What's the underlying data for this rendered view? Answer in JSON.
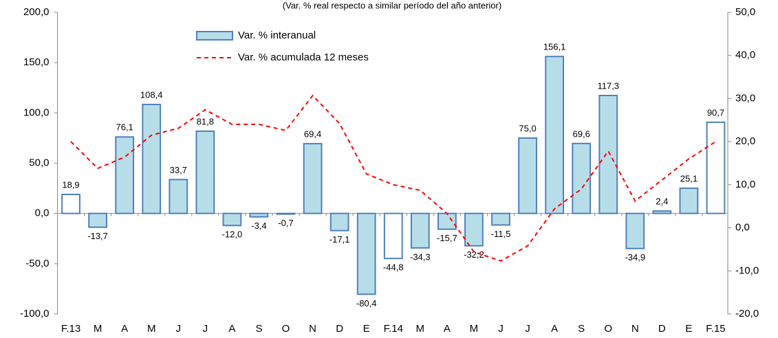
{
  "chart_data": {
    "type": "bar",
    "subtitle": "(Var. % real respecto a similar período del año anterior)",
    "categories": [
      "F.13",
      "M",
      "A",
      "M",
      "J",
      "J",
      "A",
      "S",
      "O",
      "N",
      "D",
      "E",
      "F.14",
      "M",
      "A",
      "M",
      "J",
      "J",
      "A",
      "S",
      "O",
      "N",
      "D",
      "E",
      "F.15"
    ],
    "series": [
      {
        "name": "Var. % interanual",
        "type": "bar",
        "color": "#b7dde8",
        "edge_color": "#4f81bd",
        "point_colors": [
          "#ffffff",
          "#b7dde8",
          "#b7dde8",
          "#b7dde8",
          "#b7dde8",
          "#b7dde8",
          "#b7dde8",
          "#b7dde8",
          "#b7dde8",
          "#b7dde8",
          "#b7dde8",
          "#b7dde8",
          "#ffffff",
          "#b7dde8",
          "#b7dde8",
          "#b7dde8",
          "#b7dde8",
          "#b7dde8",
          "#b7dde8",
          "#b7dde8",
          "#b7dde8",
          "#b7dde8",
          "#b7dde8",
          "#b7dde8",
          "#ffffff"
        ],
        "values": [
          18.9,
          -13.7,
          76.1,
          108.4,
          33.7,
          81.8,
          -12.0,
          -3.4,
          -0.7,
          69.4,
          -17.1,
          -80.4,
          -44.8,
          -34.3,
          -15.7,
          -32.2,
          -11.5,
          75.0,
          156.1,
          69.6,
          117.3,
          -34.9,
          2.4,
          25.1,
          90.7
        ],
        "value_labels": [
          "18,9",
          "-13,7",
          "76,1",
          "108,4",
          "33,7",
          "81,8",
          "-12,0",
          "-3,4",
          "-0,7",
          "69,4",
          "-17,1",
          "-80,4",
          "-44,8",
          "-34,3",
          "-15,7",
          "-32,2",
          "-11,5",
          "75,0",
          "156,1",
          "69,6",
          "117,3",
          "-34,9",
          "2,4",
          "25,1",
          "90,7"
        ]
      },
      {
        "name": "Var. % acumulada 12 meses",
        "type": "line",
        "axis": "y2",
        "color": "#ff0000",
        "dashed": true,
        "values": [
          20.0,
          13.8,
          16.4,
          21.5,
          23.1,
          27.4,
          24.0,
          24.0,
          22.6,
          30.7,
          24.2,
          12.5,
          10.0,
          8.7,
          3.3,
          -5.6,
          -7.7,
          -4.2,
          4.4,
          9.0,
          17.8,
          6.2,
          11.1,
          16.0,
          20.0
        ]
      }
    ],
    "ylim": [
      -100,
      200
    ],
    "yticks": [
      {
        "value": -100,
        "label": "-100,0"
      },
      {
        "value": -50,
        "label": "-50,0"
      },
      {
        "value": 0,
        "label": "0,0"
      },
      {
        "value": 50,
        "label": "50,0"
      },
      {
        "value": 100,
        "label": "100,0"
      },
      {
        "value": 150,
        "label": "150,0"
      },
      {
        "value": 200,
        "label": "200,0"
      }
    ],
    "y2lim": [
      -20,
      50
    ],
    "y2ticks": [
      {
        "value": -20,
        "label": "-20,0"
      },
      {
        "value": -10,
        "label": "-10,0"
      },
      {
        "value": 0,
        "label": "0,0"
      },
      {
        "value": 10,
        "label": "10,0"
      },
      {
        "value": 20,
        "label": "20,0"
      },
      {
        "value": 30,
        "label": "30,0"
      },
      {
        "value": 40,
        "label": "40,0"
      },
      {
        "value": 50,
        "label": "50,0"
      }
    ],
    "grid": false,
    "legend": "top-left"
  }
}
